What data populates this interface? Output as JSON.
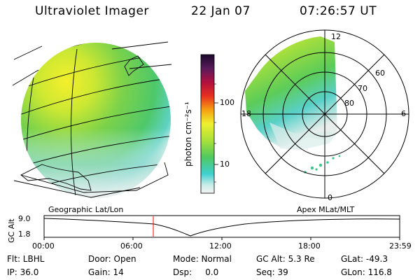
{
  "header": {
    "title": "Ultraviolet Imager",
    "date": "22 Jan 07",
    "time": "07:26:57 UT"
  },
  "colorbar": {
    "unit": "photon cm⁻²s⁻¹",
    "ticks": [
      "100",
      "10"
    ],
    "scale": "log"
  },
  "polar_plot": {
    "mlt_labels": [
      "12",
      "18",
      "6",
      "0"
    ],
    "mlat_labels": [
      "60",
      "70",
      "80"
    ]
  },
  "timeline": {
    "left_label": "Geographic Lat/Lon",
    "right_label": "Apex MLat/MLT",
    "y_axis_title": "GC Alt",
    "y_ticks": [
      "9.0",
      "1.8"
    ],
    "x_ticks": [
      "00:00",
      "06:00",
      "12:00",
      "18:00",
      "23:59"
    ],
    "current_time_marker": "07:26:57"
  },
  "status": {
    "row1": [
      {
        "key": "flt",
        "text": "Flt: LBHL"
      },
      {
        "key": "door",
        "text": "Door: Open"
      },
      {
        "key": "mode",
        "text": "Mode: Normal"
      },
      {
        "key": "gcalt",
        "text": "GC Alt: 5.3 Re"
      },
      {
        "key": "glat",
        "text": "GLat: -49.3"
      }
    ],
    "row2": [
      {
        "key": "ip",
        "text": "IP: 36.0"
      },
      {
        "key": "gain",
        "text": "Gain: 14"
      },
      {
        "key": "dsp",
        "text": "Dsp:     0.0"
      },
      {
        "key": "seq",
        "text": "Seq: 39"
      },
      {
        "key": "glon",
        "text": "GLon: 116.8"
      }
    ]
  },
  "colors": {
    "accent_marker": "#ff0000",
    "grid": "#000000"
  }
}
